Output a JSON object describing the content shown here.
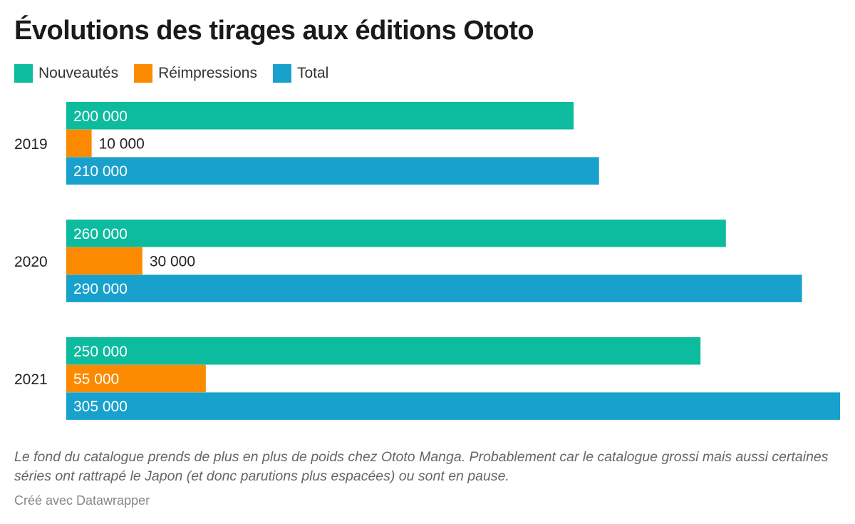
{
  "title": "Évolutions des tirages aux éditions Ototo",
  "note": "Le fond du catalogue prends de plus en plus de poids chez Ototo Manga. Probablement car le catalogue grossi mais aussi certaines séries ont rattrapé le Japon (et donc parutions plus espacées) ou sont en pause.",
  "credit": "Créé avec Datawrapper",
  "chart_data": {
    "type": "bar",
    "orientation": "horizontal",
    "title": "Évolutions des tirages aux éditions Ototo",
    "categories": [
      "2019",
      "2020",
      "2021"
    ],
    "series": [
      {
        "name": "Nouveautés",
        "color": "#0dbb9e",
        "values": [
          200000,
          260000,
          250000
        ],
        "labels": [
          "200 000",
          "260 000",
          "250 000"
        ]
      },
      {
        "name": "Réimpressions",
        "color": "#fb8a00",
        "values": [
          10000,
          30000,
          55000
        ],
        "labels": [
          "10 000",
          "30 000",
          "55 000"
        ]
      },
      {
        "name": "Total",
        "color": "#18a1cd",
        "values": [
          210000,
          290000,
          305000
        ],
        "labels": [
          "210 000",
          "290 000",
          "305 000"
        ]
      }
    ],
    "xlim": [
      0,
      305000
    ],
    "legend": "top-left",
    "grid": false
  }
}
